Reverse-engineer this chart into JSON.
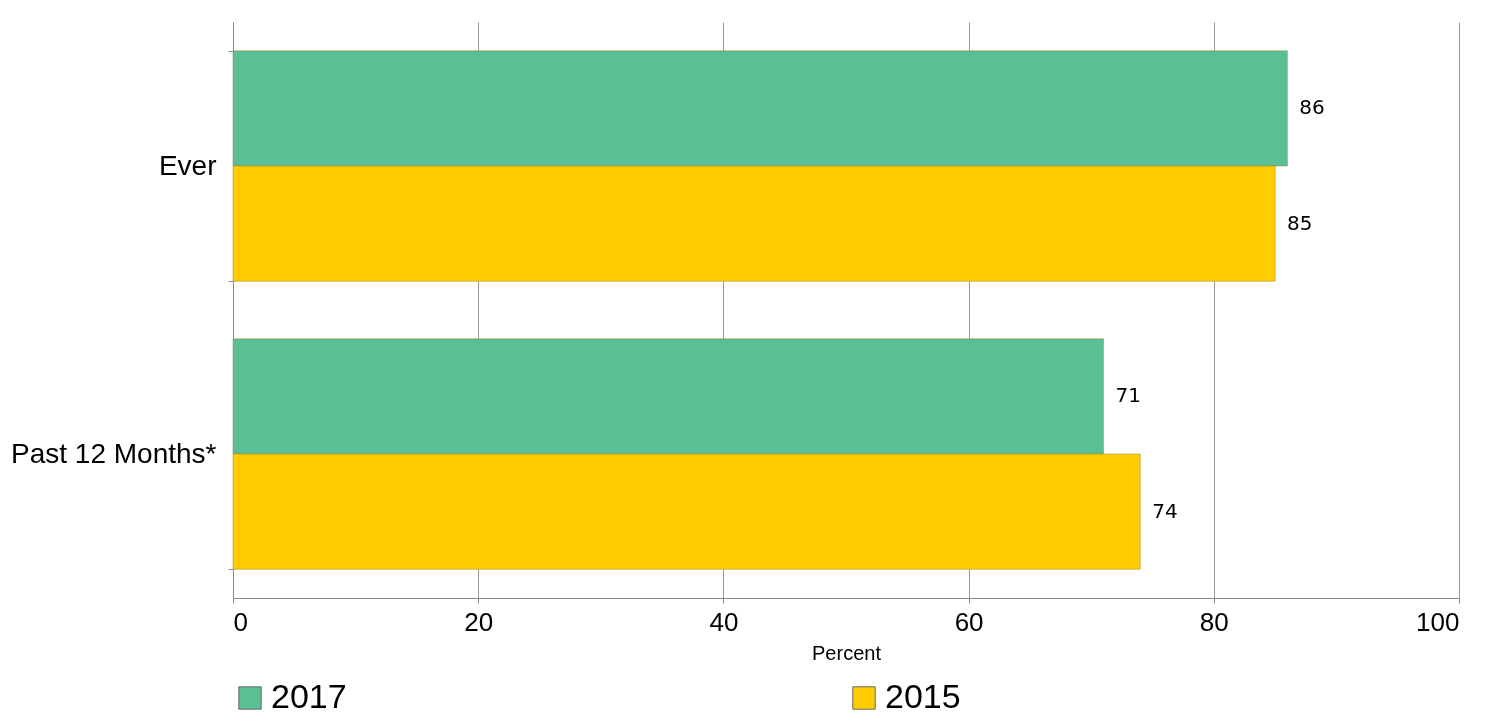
{
  "chart_data": {
    "type": "bar",
    "orientation": "horizontal",
    "xlabel": "Percent",
    "categories": [
      "Ever",
      "Past 12 Months*"
    ],
    "series": [
      {
        "name": "2017",
        "color": "#5bbf95",
        "values": [
          86,
          71
        ]
      },
      {
        "name": "2015",
        "color": "#ffcc00",
        "values": [
          85,
          74
        ]
      }
    ],
    "xlim": [
      0,
      100
    ],
    "xticks": [
      0,
      20,
      40,
      60,
      80,
      100
    ],
    "grid": "x",
    "data_labels": true,
    "legend": "bottom"
  }
}
